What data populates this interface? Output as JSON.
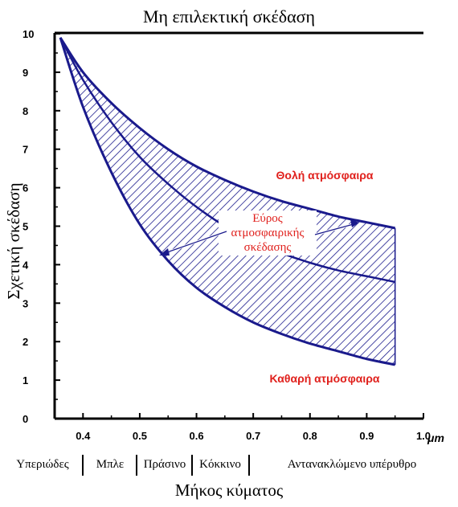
{
  "chart_data": {
    "type": "area",
    "title": "Μη επιλεκτική σκέδαση",
    "xlabel": "Μήκος κύματος",
    "ylabel": "Σχετική σκέδαση",
    "x_unit": "μm",
    "xlim": [
      0.35,
      1.0
    ],
    "ylim": [
      0,
      10
    ],
    "x_ticks": [
      "0.4",
      "0.5",
      "0.6",
      "0.7",
      "0.8",
      "0.9",
      "1.0"
    ],
    "y_ticks": [
      "0",
      "1",
      "2",
      "3",
      "4",
      "5",
      "6",
      "7",
      "8",
      "9",
      "10"
    ],
    "series": [
      {
        "name": "Θολή ατμόσφαιρα",
        "x": [
          0.36,
          0.4,
          0.45,
          0.5,
          0.55,
          0.6,
          0.65,
          0.7,
          0.75,
          0.8,
          0.85,
          0.9,
          0.95
        ],
        "y": [
          9.9,
          9.0,
          8.2,
          7.55,
          7.0,
          6.55,
          6.2,
          5.9,
          5.65,
          5.45,
          5.25,
          5.1,
          4.95
        ]
      },
      {
        "name": "",
        "x": [
          0.36,
          0.4,
          0.45,
          0.5,
          0.55,
          0.6,
          0.65,
          0.7,
          0.75,
          0.8,
          0.85,
          0.9,
          0.95
        ],
        "y": [
          9.9,
          8.8,
          7.7,
          6.8,
          6.1,
          5.5,
          5.0,
          4.6,
          4.3,
          4.05,
          3.85,
          3.7,
          3.55
        ]
      },
      {
        "name": "Καθαρή ατμόσφαιρα",
        "x": [
          0.36,
          0.4,
          0.45,
          0.5,
          0.55,
          0.6,
          0.65,
          0.7,
          0.75,
          0.8,
          0.85,
          0.9,
          0.95
        ],
        "y": [
          9.9,
          8.1,
          6.4,
          5.05,
          4.1,
          3.4,
          2.9,
          2.5,
          2.2,
          1.95,
          1.75,
          1.55,
          1.4
        ]
      }
    ],
    "band_label": "Εύρος ατμοσφαιρικής σκέδασης",
    "band_label_lines": [
      "Εύρος",
      "ατμοσφαιρικής",
      "σκέδασης"
    ],
    "spectrum_regions": [
      "Υπεριώδες",
      "Μπλε",
      "Πράσινο",
      "Κόκκινο",
      "Αντανακλώμενο υπέρυθρο"
    ],
    "spectrum_boundaries": [
      0.4,
      0.5,
      0.6,
      0.7
    ],
    "grid": false,
    "colors": {
      "curve": "#1a1a8c",
      "hatch": "#1a1a8c",
      "axis": "#000000",
      "annotation": "#e0201c"
    }
  }
}
